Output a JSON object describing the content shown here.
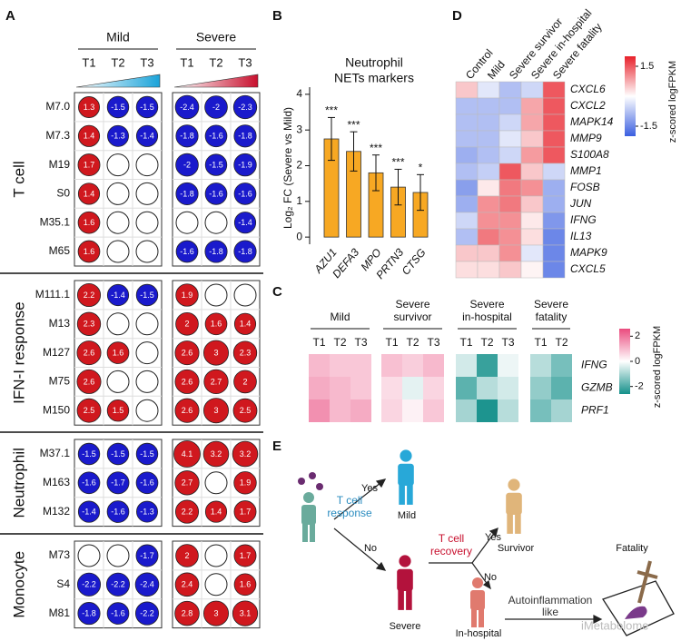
{
  "chart_data": [
    {
      "type": "dotmatrix",
      "label": "A",
      "groups": [
        {
          "name": "Mild",
          "timepoints": [
            "T1",
            "T2",
            "T3"
          ],
          "color": "#1aa3d9"
        },
        {
          "name": "Severe",
          "timepoints": [
            "T1",
            "T2",
            "T3"
          ],
          "color": "#c8102e"
        }
      ],
      "positive_color": "#d0181e",
      "negative_color": "#1a1acc",
      "sections": [
        {
          "name": "T cell",
          "rows": [
            {
              "module": "M7.0",
              "values": [
                1.3,
                -1.5,
                -1.5,
                -2.4,
                -2,
                -2.3
              ]
            },
            {
              "module": "M7.3",
              "values": [
                1.4,
                -1.3,
                -1.4,
                -1.8,
                -1.6,
                -1.8
              ]
            },
            {
              "module": "M19",
              "values": [
                1.7,
                null,
                null,
                -2,
                -1.5,
                -1.9
              ]
            },
            {
              "module": "S0",
              "values": [
                1.4,
                null,
                null,
                -1.8,
                -1.6,
                -1.6
              ]
            },
            {
              "module": "M35.1",
              "values": [
                1.6,
                null,
                null,
                null,
                null,
                -1.4
              ]
            },
            {
              "module": "M65",
              "values": [
                1.6,
                null,
                null,
                -1.6,
                -1.8,
                -1.8
              ]
            }
          ]
        },
        {
          "name": "IFN-I response",
          "rows": [
            {
              "module": "M111.1",
              "values": [
                2.2,
                -1.4,
                -1.5,
                1.9,
                null,
                null
              ]
            },
            {
              "module": "M13",
              "values": [
                2.3,
                null,
                null,
                2,
                1.6,
                1.4
              ]
            },
            {
              "module": "M127",
              "values": [
                2.6,
                1.6,
                null,
                2.6,
                3,
                2.3
              ]
            },
            {
              "module": "M75",
              "values": [
                2.6,
                null,
                null,
                2.6,
                2.7,
                2
              ]
            },
            {
              "module": "M150",
              "values": [
                2.5,
                1.5,
                null,
                2.6,
                3,
                2.5
              ]
            }
          ]
        },
        {
          "name": "Neutrophil",
          "rows": [
            {
              "module": "M37.1",
              "values": [
                -1.5,
                -1.5,
                -1.5,
                4.1,
                3.2,
                3.2
              ]
            },
            {
              "module": "M163",
              "values": [
                -1.6,
                -1.7,
                -1.6,
                2.7,
                null,
                1.9
              ]
            },
            {
              "module": "M132",
              "values": [
                -1.4,
                -1.6,
                -1.3,
                2.2,
                1.4,
                1.7
              ]
            }
          ]
        },
        {
          "name": "Monocyte",
          "rows": [
            {
              "module": "M73",
              "values": [
                null,
                null,
                -1.7,
                2,
                null,
                1.7
              ]
            },
            {
              "module": "S4",
              "values": [
                -2.2,
                -2.2,
                -2.4,
                2.4,
                null,
                1.6
              ]
            },
            {
              "module": "M81",
              "values": [
                -1.8,
                -1.6,
                -2.2,
                2.8,
                3,
                3.1
              ]
            }
          ]
        }
      ]
    },
    {
      "type": "bar",
      "label": "B",
      "title": [
        "Neutrophil",
        "NETs markers"
      ],
      "y_label": "Log₂ FC (Severe vs Mild)",
      "categories": [
        "AZU1",
        "DEFA3",
        "MPO",
        "PRTN3",
        "CTSG"
      ],
      "values": [
        2.75,
        2.4,
        1.8,
        1.4,
        1.25
      ],
      "errors": [
        0.6,
        0.55,
        0.5,
        0.5,
        0.5
      ],
      "annotations": [
        "***",
        "***",
        "***",
        "***",
        "*"
      ],
      "color": "#f7a823",
      "ylim": [
        -0.2,
        4.2
      ],
      "yticks": [
        0,
        1,
        2,
        3,
        4
      ]
    },
    {
      "type": "heatmap",
      "label": "C",
      "column_groups": [
        {
          "name": [
            "Mild"
          ],
          "columns": [
            "T1",
            "T2",
            "T3"
          ]
        },
        {
          "name": [
            "Severe",
            "survivor"
          ],
          "columns": [
            "T1",
            "T2",
            "T3"
          ]
        },
        {
          "name": [
            "Severe",
            "in-hospital"
          ],
          "columns": [
            "T1",
            "T2",
            "T3"
          ]
        },
        {
          "name": [
            "Severe",
            "fatality"
          ],
          "columns": [
            "T1",
            "T2"
          ]
        }
      ],
      "rows": [
        "IFNG",
        "GZMB",
        "PRF1"
      ],
      "values": [
        [
          1.0,
          0.8,
          0.8,
          0.9,
          0.7,
          1.0,
          -0.5,
          -2.2,
          -0.2,
          -0.8,
          -1.5
        ],
        [
          1.2,
          1.0,
          0.8,
          0.5,
          -0.3,
          0.6,
          -1.8,
          -0.8,
          -0.5,
          -1.2,
          -1.8
        ],
        [
          1.6,
          1.0,
          1.2,
          0.6,
          0.2,
          0.8,
          -1.0,
          -2.5,
          -0.8,
          -1.5,
          -1.0
        ]
      ],
      "colors": {
        "low": "#14908a",
        "mid": "#ffffff",
        "high": "#ea4a7e"
      },
      "zlim": [
        -2.6,
        2.6
      ],
      "colorbar_ticks": [
        2,
        0,
        -2
      ],
      "colorbar_label": "z-scored logFPKM"
    },
    {
      "type": "heatmap",
      "label": "D",
      "columns": [
        "Control",
        "Mild",
        "Severe survivor",
        "Severe in-hospital",
        "Severe fatality"
      ],
      "rows": [
        "CXCL6",
        "CXCL2",
        "MAPK14",
        "MMP9",
        "S100A8",
        "MMP1",
        "FOSB",
        "JUN",
        "IFNG",
        "IL13",
        "MAPK9",
        "CXCL5"
      ],
      "values": [
        [
          0.5,
          -0.3,
          -0.8,
          -0.5,
          1.5
        ],
        [
          -0.8,
          -0.8,
          -0.8,
          0.8,
          1.5
        ],
        [
          -0.8,
          -0.8,
          -0.5,
          0.8,
          1.5
        ],
        [
          -0.8,
          -0.8,
          -0.3,
          0.5,
          1.5
        ],
        [
          -1,
          -0.8,
          -0.5,
          0.9,
          1.5
        ],
        [
          -0.8,
          -0.6,
          1.5,
          0.5,
          -0.5
        ],
        [
          -1.2,
          0.2,
          1.2,
          1.0,
          -1.0
        ],
        [
          -1.0,
          1.0,
          1.2,
          0.5,
          -1.0
        ],
        [
          -0.5,
          1.0,
          1.0,
          0.2,
          -1.3
        ],
        [
          -0.8,
          1.2,
          1.0,
          0.3,
          -1.5
        ],
        [
          0.5,
          0.5,
          1.0,
          -0.3,
          -1.5
        ],
        [
          0.3,
          0.3,
          0.5,
          0.1,
          -1.5
        ]
      ],
      "colors": {
        "low": "#3b5fe0",
        "mid": "#ffffff",
        "high": "#e8202a"
      },
      "zlim": [
        -2,
        2
      ],
      "colorbar_ticks": [
        1.5,
        -1.5
      ],
      "colorbar_label": "z-scored logFPKM"
    }
  ],
  "diagram": {
    "label": "E",
    "first_question": [
      "T cell",
      "response"
    ],
    "first_yes": "Yes",
    "first_no": "No",
    "mild": "Mild",
    "severe": "Severe",
    "second_question": [
      "T cell",
      "recovery"
    ],
    "second_yes": "Yes",
    "second_no": "No",
    "survivor": "Survivor",
    "in_hospital": "In-hospital",
    "fatality": "Fatality",
    "third_step": [
      "Autoinflammation",
      "like"
    ],
    "watermark": "iMetabolome"
  }
}
